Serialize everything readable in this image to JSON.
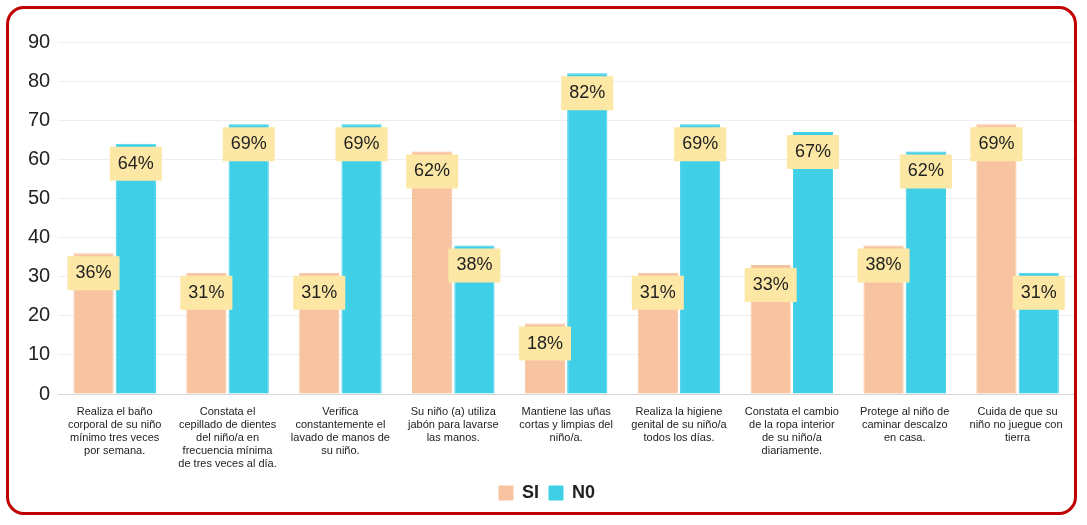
{
  "chart_data": {
    "type": "bar",
    "categories": [
      "Realiza el baño corporal de su niño mínimo tres veces por semana.",
      "Constata el cepillado de dientes del niño/a en frecuencia mínima de tres veces al día.",
      "Verifica constantemente el lavado de manos de su niño.",
      "Su niño (a) utiliza jabón para lavarse las manos.",
      "Mantiene las uñas cortas y limpias del niño/a.",
      "Realiza la higiene genital de su niño/a todos los días.",
      "Constata el cambio de la ropa interior de su niño/a diariamente.",
      "Protege al niño de caminar descalzo en casa.",
      "Cuida de que su niño no juegue con  tierra"
    ],
    "series": [
      {
        "name": "SI",
        "color": "#f8c3a0",
        "values": [
          36,
          31,
          31,
          62,
          18,
          31,
          33,
          38,
          69
        ],
        "value_labels": [
          "36%",
          "31%",
          "31%",
          "62%",
          "18%",
          "31%",
          "33%",
          "38%",
          "69%"
        ]
      },
      {
        "name": "N0",
        "color": "#3fd0e8",
        "values": [
          64,
          69,
          69,
          38,
          82,
          69,
          67,
          62,
          31
        ],
        "value_labels": [
          "64%",
          "69%",
          "69%",
          "38%",
          "82%",
          "69%",
          "67%",
          "62%",
          "31%"
        ]
      }
    ],
    "ylim": [
      0,
      90
    ],
    "yticks": [
      0,
      10,
      20,
      30,
      40,
      50,
      60,
      70,
      80,
      90
    ],
    "grid": "y",
    "legend": "bottom"
  }
}
